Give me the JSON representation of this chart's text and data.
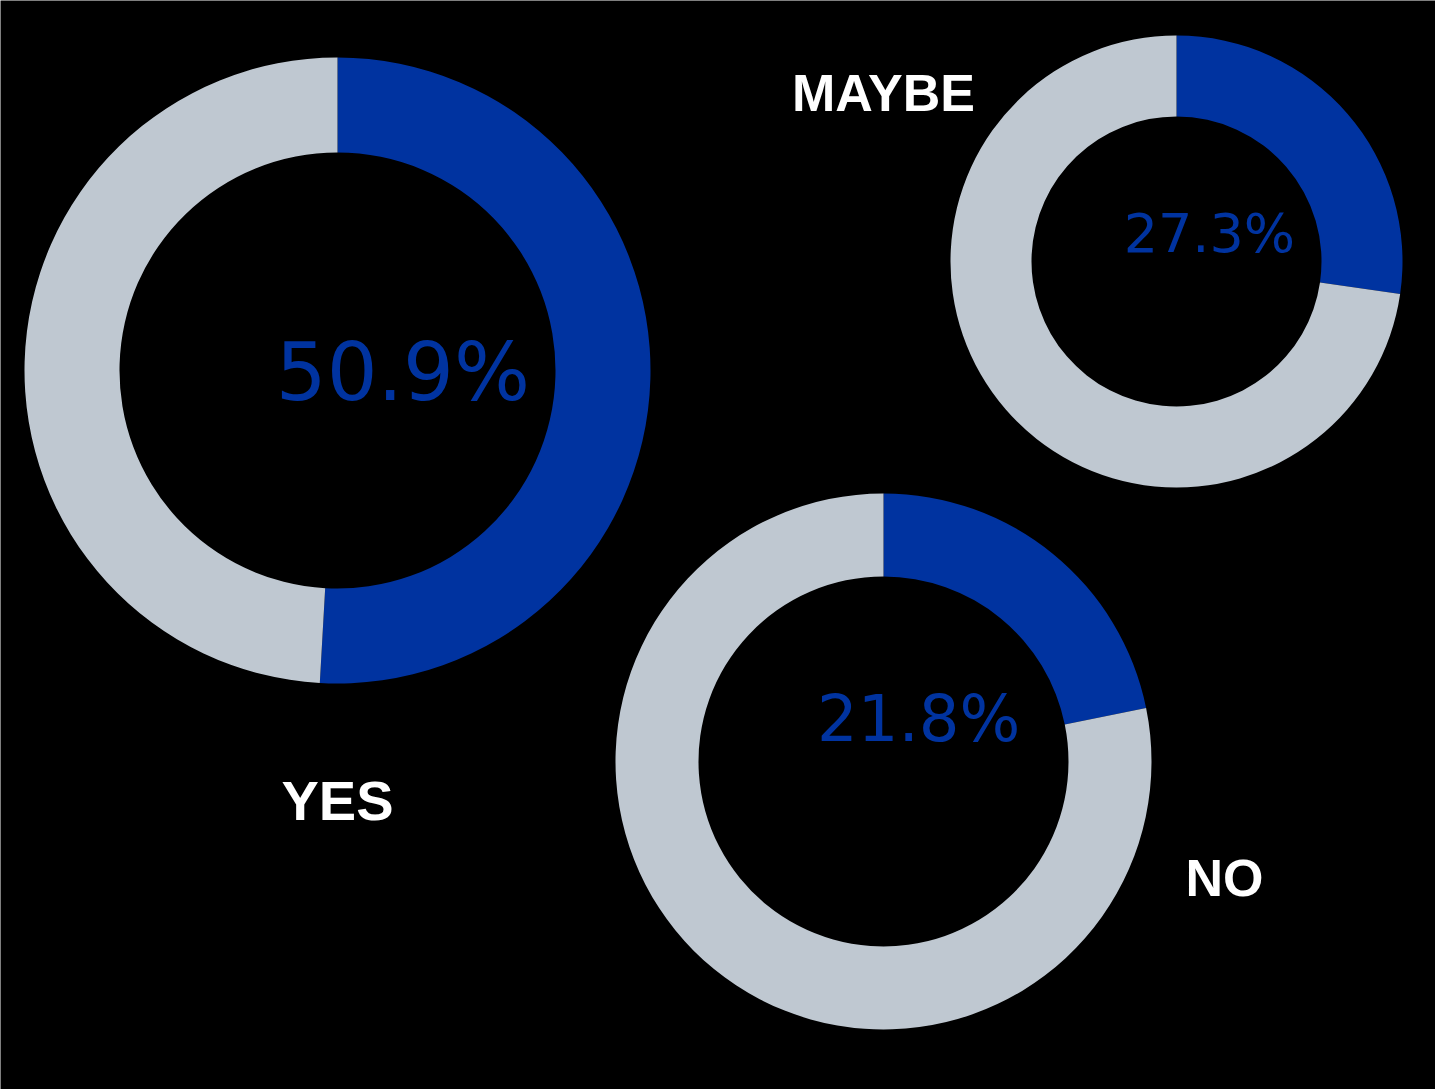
{
  "chart_data": [
    {
      "type": "donut",
      "title": "YES",
      "categories": [
        null,
        null
      ],
      "values": [
        50.9,
        49.1
      ],
      "colors": [
        "#0033a0",
        "#bfc8d1"
      ],
      "value_labels": [
        "50.9%",
        null
      ]
    },
    {
      "type": "donut",
      "title": "MAYBE",
      "categories": [
        null,
        null
      ],
      "values": [
        27.3,
        72.7
      ],
      "colors": [
        "#0033a0",
        "#bfc8d1"
      ],
      "value_labels": [
        "27.3%",
        null
      ]
    },
    {
      "type": "donut",
      "title": "NO",
      "categories": [
        null,
        null
      ],
      "values": [
        21.8,
        78.2
      ],
      "colors": [
        "#0033a0",
        "#bfc8d1"
      ],
      "value_labels": [
        "21.8%",
        null
      ]
    }
  ]
}
